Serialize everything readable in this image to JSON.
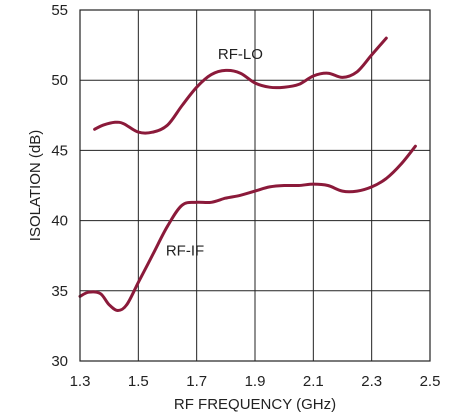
{
  "chart_data": {
    "type": "line",
    "xlabel": "RF FREQUENCY (GHz)",
    "ylabel": "ISOLATION (dB)",
    "xlim": [
      1.3,
      2.5
    ],
    "ylim": [
      30,
      55
    ],
    "x_ticks": [
      "1.3",
      "1.5",
      "1.7",
      "1.9",
      "2.1",
      "2.3",
      "2.5"
    ],
    "y_ticks": [
      "30",
      "35",
      "40",
      "45",
      "50",
      "55"
    ],
    "grid": true,
    "line_color": "#8b1a3a",
    "series": [
      {
        "name": "RF-LO",
        "label_at": [
          1.85,
          51.5
        ],
        "x": [
          1.35,
          1.38,
          1.42,
          1.45,
          1.5,
          1.55,
          1.6,
          1.65,
          1.7,
          1.75,
          1.8,
          1.85,
          1.9,
          1.95,
          2.0,
          2.05,
          2.1,
          2.15,
          2.2,
          2.25,
          2.3,
          2.35
        ],
        "y": [
          46.5,
          46.8,
          47.0,
          46.9,
          46.3,
          46.3,
          46.8,
          48.2,
          49.5,
          50.4,
          50.7,
          50.5,
          49.8,
          49.5,
          49.5,
          49.7,
          50.3,
          50.5,
          50.2,
          50.6,
          51.8,
          53.0
        ]
      },
      {
        "name": "RF-IF",
        "label_at": [
          1.66,
          37.5
        ],
        "x": [
          1.3,
          1.33,
          1.37,
          1.4,
          1.43,
          1.46,
          1.5,
          1.55,
          1.6,
          1.65,
          1.7,
          1.75,
          1.8,
          1.85,
          1.9,
          1.95,
          2.0,
          2.05,
          2.1,
          2.15,
          2.2,
          2.25,
          2.3,
          2.35,
          2.4,
          2.45
        ],
        "y": [
          34.6,
          34.9,
          34.8,
          34.0,
          33.6,
          34.0,
          35.6,
          37.6,
          39.6,
          41.1,
          41.3,
          41.3,
          41.6,
          41.8,
          42.1,
          42.4,
          42.5,
          42.5,
          42.6,
          42.5,
          42.1,
          42.1,
          42.4,
          43.0,
          44.0,
          45.3
        ]
      }
    ]
  }
}
